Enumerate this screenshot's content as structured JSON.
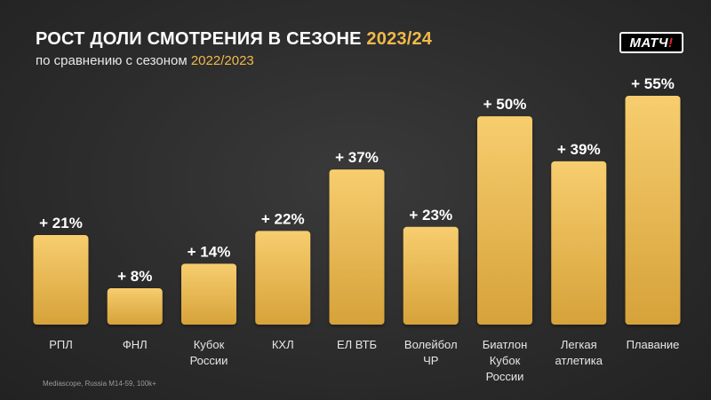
{
  "header": {
    "title_main": "РОСТ ДОЛИ СМОТРЕНИЯ В СЕЗОНЕ ",
    "title_accent": "2023/24",
    "subtitle_main": "по сравнению с сезоном ",
    "subtitle_accent": "2022/2023"
  },
  "logo": {
    "text": "МАТЧ",
    "mark": "!"
  },
  "footer": {
    "source": "Mediascope, Russia M14-59, 100k+"
  },
  "colors": {
    "bar_top": "#f7cd6e",
    "bar_bottom": "#d6a23a",
    "accent": "#f0b94a",
    "background": "#2c2c2c"
  },
  "chart_data": {
    "type": "bar",
    "title": "РОСТ ДОЛИ СМОТРЕНИЯ В СЕЗОНЕ 2023/24",
    "subtitle": "по сравнению с сезоном 2022/2023",
    "categories": [
      [
        "РПЛ"
      ],
      [
        "ФНЛ"
      ],
      [
        "Кубок",
        "России"
      ],
      [
        "КХЛ"
      ],
      [
        "ЕЛ ВТБ"
      ],
      [
        "Волейбол",
        "ЧР"
      ],
      [
        "Биатлон",
        "Кубок",
        "России"
      ],
      [
        "Легкая",
        "атлетика"
      ],
      [
        "Плавание"
      ]
    ],
    "values": [
      21,
      8,
      14,
      22,
      37,
      23,
      50,
      39,
      55
    ],
    "data_labels": [
      "+ 21%",
      "+ 8%",
      "+ 14%",
      "+ 22%",
      "+ 37%",
      "+ 23%",
      "+ 50%",
      "+ 39%",
      "+ 55%"
    ],
    "unit": "%",
    "ylim": [
      0,
      55
    ],
    "grid": false,
    "legend": "none"
  }
}
